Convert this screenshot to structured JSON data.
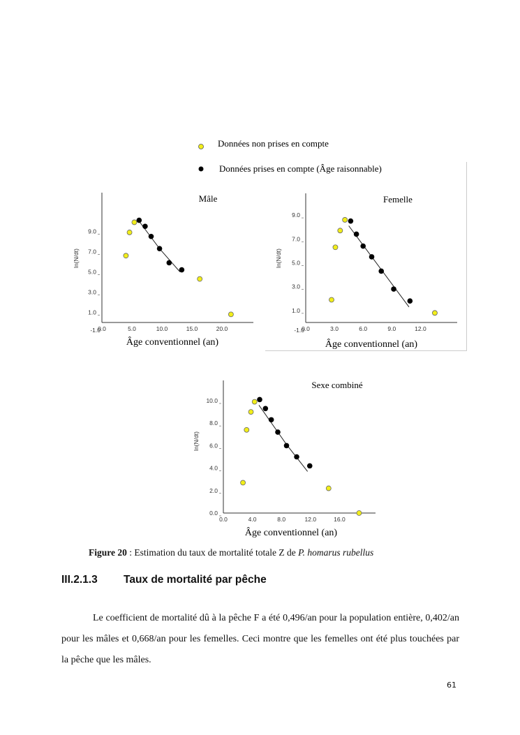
{
  "legend": {
    "excluded": "Données non prises en compte",
    "included": "Données prises en compte (Âge raisonnable)"
  },
  "colors": {
    "excluded": "#f2ee1a",
    "included": "#000000"
  },
  "chart_data": [
    {
      "type": "scatter",
      "title": "Mâle",
      "xlabel": "Âge conventionnel (an)",
      "ylabel": "ln(N/dt)",
      "xlim": [
        0,
        25
      ],
      "ylim": [
        -1,
        12.8
      ],
      "xticks": [
        "0.0",
        "5.0",
        "10.0",
        "15.0",
        "20.0"
      ],
      "yticks": [
        "-1.0",
        "1.0",
        "3.0",
        "5.0",
        "7.0",
        "9.0"
      ],
      "series": [
        {
          "name": "Données non prises en compte",
          "points": [
            [
              4.0,
              6.6
            ],
            [
              4.6,
              8.9
            ],
            [
              5.4,
              9.9
            ],
            [
              16.3,
              4.3
            ],
            [
              21.5,
              0.8
            ]
          ]
        },
        {
          "name": "Données prises en compte (Âge raisonnable)",
          "points": [
            [
              6.2,
              10.1
            ],
            [
              7.2,
              9.5
            ],
            [
              8.2,
              8.5
            ],
            [
              9.6,
              7.3
            ],
            [
              11.2,
              5.9
            ],
            [
              13.3,
              5.2
            ]
          ]
        }
      ],
      "regression": [
        [
          6.2,
          10.0
        ],
        [
          9.6,
          7.3
        ],
        [
          13.0,
          5.0
        ]
      ]
    },
    {
      "type": "scatter",
      "title": "Femelle",
      "xlabel": "Âge conventionnel (an)",
      "ylabel": "ln(N/dt)",
      "xlim": [
        0,
        15.8
      ],
      "ylim": [
        -1,
        10.8
      ],
      "xticks": [
        "0.0",
        "3.0",
        "6.0",
        "9.0",
        "12.0"
      ],
      "yticks": [
        "-1.0",
        "1.0",
        "3.0",
        "5.0",
        "7.0",
        "9.0"
      ],
      "series": [
        {
          "name": "Données non prises en compte",
          "points": [
            [
              2.7,
              1.9
            ],
            [
              3.1,
              6.3
            ],
            [
              3.6,
              7.7
            ],
            [
              4.1,
              8.6
            ],
            [
              13.5,
              0.8
            ]
          ]
        },
        {
          "name": "Données prises en compte (Âge raisonnable)",
          "points": [
            [
              4.7,
              8.5
            ],
            [
              5.3,
              7.4
            ],
            [
              6.0,
              6.4
            ],
            [
              6.9,
              5.5
            ],
            [
              7.9,
              4.3
            ],
            [
              9.2,
              2.8
            ],
            [
              10.9,
              1.8
            ]
          ]
        }
      ],
      "regression": [
        [
          4.5,
          8.1
        ],
        [
          10.8,
          1.3
        ]
      ]
    },
    {
      "type": "scatter",
      "title": "Sexe combiné",
      "xlabel": "Âge conventionnel (an)",
      "ylabel": "ln(N/dt)",
      "xlim": [
        0,
        21
      ],
      "ylim": [
        0,
        11.8
      ],
      "xticks": [
        "0.0",
        "4.0",
        "8.0",
        "12.0",
        "16.0"
      ],
      "yticks": [
        "0.0",
        "2.0",
        "4.0",
        "6.0",
        "8.0",
        "10.0"
      ],
      "series": [
        {
          "name": "Données non prises en compte",
          "points": [
            [
              2.7,
              2.7
            ],
            [
              3.2,
              7.4
            ],
            [
              3.8,
              9.0
            ],
            [
              4.3,
              9.9
            ],
            [
              14.5,
              2.2
            ],
            [
              18.7,
              0.0
            ]
          ]
        },
        {
          "name": "Données prises en compte (Âge raisonnable)",
          "points": [
            [
              5.0,
              10.1
            ],
            [
              5.8,
              9.3
            ],
            [
              6.6,
              8.3
            ],
            [
              7.5,
              7.2
            ],
            [
              8.7,
              6.0
            ],
            [
              10.1,
              5.0
            ],
            [
              11.9,
              4.2
            ]
          ]
        }
      ],
      "regression": [
        [
          4.9,
          9.6
        ],
        [
          8.7,
          6.1
        ],
        [
          11.6,
          3.7
        ]
      ]
    }
  ],
  "caption": {
    "label": "Figure 20",
    "text": " : Estimation du taux de mortalité totale Z de ",
    "species": "P. homarus rubellus"
  },
  "section": {
    "number": "III.2.1.3",
    "title": "Taux de mortalité par pêche"
  },
  "paragraph": "Le coefficient de mortalité dû à la pêche F a été 0,496/an pour la population entière, 0,402/an pour les mâles et 0,668/an pour les femelles. Ceci montre que les femelles ont été plus touchées par la pêche que les mâles.",
  "page_number": "61"
}
